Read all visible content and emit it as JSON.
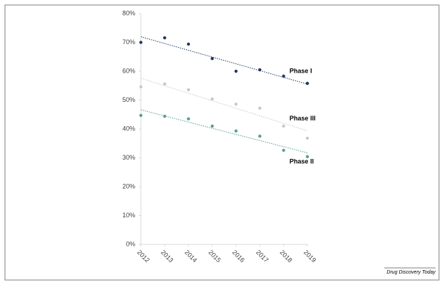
{
  "chart_data": {
    "type": "scatter",
    "x": [
      2012,
      2013,
      2014,
      2015,
      2016,
      2017,
      2018,
      2019
    ],
    "xlim": [
      2012,
      2019
    ],
    "xticks": [
      2012,
      2013,
      2014,
      2015,
      2016,
      2017,
      2018,
      2019
    ],
    "ylim": [
      0,
      80
    ],
    "yticks": [
      {
        "value": 0,
        "label": "0%"
      },
      {
        "value": 10,
        "label": "10%"
      },
      {
        "value": 20,
        "label": "20%"
      },
      {
        "value": 30,
        "label": "30%"
      },
      {
        "value": 40,
        "label": "40%"
      },
      {
        "value": 50,
        "label": "50%"
      },
      {
        "value": 60,
        "label": "60%"
      },
      {
        "value": 70,
        "label": "70%"
      },
      {
        "value": 80,
        "label": "80%"
      }
    ],
    "trendline": true,
    "series": [
      {
        "name": "Phase I",
        "color": "#1f3864",
        "values": [
          70,
          71.6,
          69.4,
          64.4,
          60,
          60.5,
          58.3,
          55.8
        ]
      },
      {
        "name": "Phase III",
        "color": "#c9c9c9",
        "values": [
          54.6,
          55.6,
          53.6,
          50.4,
          48.6,
          47.2,
          41,
          36.8
        ]
      },
      {
        "name": "Phase II",
        "color": "#5b9e96",
        "values": [
          44.7,
          44.4,
          43.5,
          41,
          39.3,
          37.5,
          32.6,
          30.4
        ]
      }
    ],
    "source": "Drug Discovery Today"
  }
}
